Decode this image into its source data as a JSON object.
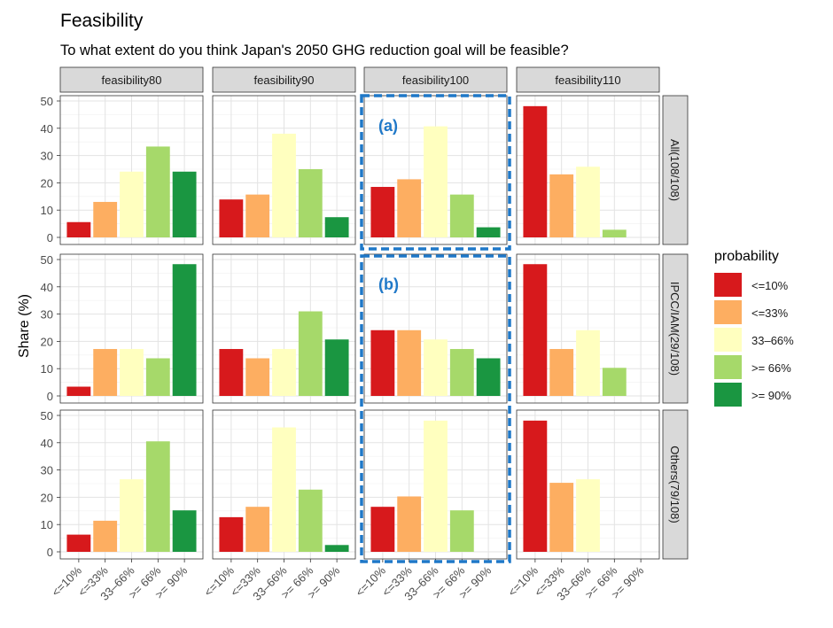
{
  "chart_data": {
    "type": "bar",
    "title": "Feasibility",
    "subtitle": "To what extent do you think Japan's 2050 GHG reduction goal will be feasible?",
    "ylabel": "Share (%)",
    "xlabel": "",
    "ylim": [
      0,
      50
    ],
    "yticks": [
      "0",
      "10",
      "20",
      "30",
      "40",
      "50"
    ],
    "categories": [
      "<=10%",
      "<=33%",
      "33–66%",
      ">= 66%",
      ">= 90%"
    ],
    "columns": [
      "feasibility80",
      "feasibility90",
      "feasibility100",
      "feasibility110"
    ],
    "rows": [
      "All(108/108)",
      "IPCC/IAM(29/108)",
      "Others(79/108)"
    ],
    "colors": [
      "#d7191c",
      "#fdae61",
      "#ffffbf",
      "#a6d96a",
      "#1a9641"
    ],
    "grid": true,
    "legend": {
      "title": "probability",
      "position": "right",
      "items": [
        "<=10%",
        "<=33%",
        "33–66%",
        ">= 66%",
        ">= 90%"
      ]
    },
    "annotations": [
      {
        "label": "(a)",
        "column": "feasibility100",
        "row": "All(108/108)"
      },
      {
        "label": "(b)",
        "column": "feasibility100",
        "row": "IPCC/IAM(29/108)"
      }
    ],
    "panels": [
      [
        [
          5.6,
          13.0,
          24.1,
          33.3,
          24.1
        ],
        [
          13.9,
          15.7,
          38.0,
          25.0,
          7.4
        ],
        [
          18.5,
          21.3,
          40.7,
          15.7,
          3.7
        ],
        [
          48.1,
          23.1,
          25.9,
          2.8,
          0
        ]
      ],
      [
        [
          3.4,
          17.2,
          17.2,
          13.8,
          48.3
        ],
        [
          17.2,
          13.8,
          17.2,
          31.0,
          20.7
        ],
        [
          24.1,
          24.1,
          20.7,
          17.2,
          13.8
        ],
        [
          48.3,
          17.2,
          24.1,
          10.3,
          0
        ]
      ],
      [
        [
          6.3,
          11.4,
          26.6,
          40.5,
          15.2
        ],
        [
          12.7,
          16.5,
          45.6,
          22.8,
          2.5
        ],
        [
          16.5,
          20.3,
          48.1,
          15.2,
          0
        ],
        [
          48.1,
          25.3,
          26.6,
          0,
          0
        ]
      ]
    ]
  }
}
